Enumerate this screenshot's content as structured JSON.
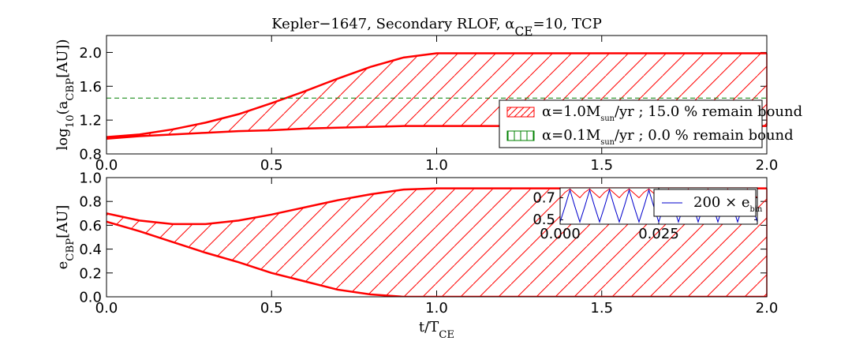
{
  "chart_data": [
    {
      "type": "band",
      "title": [
        {
          "text": "Kepler−1647, Secondary RLOF, α"
        },
        {
          "sub": "CE"
        },
        {
          "text": "=10, TCP"
        }
      ],
      "ylabel": [
        {
          "text": "log"
        },
        {
          "sub": "10"
        },
        {
          "text": "(a"
        },
        {
          "sub": "CBP"
        },
        {
          "text": "[AU])"
        }
      ],
      "x": [
        0,
        0.1,
        0.2,
        0.3,
        0.4,
        0.5,
        0.6,
        0.7,
        0.8,
        0.9,
        1.0,
        1.1,
        1.2,
        1.3,
        1.4,
        1.5,
        1.6,
        1.7,
        1.8,
        1.9,
        2.0
      ],
      "series": [
        {
          "name": [
            {
              "text": "α=1.0M"
            },
            {
              "sub": "sun"
            },
            {
              "text": "/yr ; 15.0 % remain bound"
            }
          ],
          "color": "#ff0000",
          "upper": [
            1.0,
            1.03,
            1.09,
            1.17,
            1.27,
            1.4,
            1.54,
            1.69,
            1.83,
            1.94,
            1.99,
            1.99,
            1.99,
            1.99,
            1.99,
            1.99,
            1.99,
            1.99,
            1.99,
            1.99,
            1.99
          ],
          "lower": [
            0.98,
            1.01,
            1.03,
            1.05,
            1.07,
            1.08,
            1.1,
            1.11,
            1.12,
            1.13,
            1.13,
            1.13,
            1.13,
            1.13,
            1.13,
            1.13,
            1.13,
            1.13,
            1.13,
            1.13,
            1.13
          ]
        },
        {
          "name": [
            {
              "text": "α=0.1M"
            },
            {
              "sub": "sun"
            },
            {
              "text": "/yr ; 0.0 % remain bound"
            }
          ],
          "color": "#008000"
        }
      ],
      "hline": {
        "value": 1.46,
        "color": "#008000"
      },
      "xlim": [
        0,
        2
      ],
      "ylim": [
        0.8,
        2.2
      ],
      "xticks": [
        {
          "value": 0,
          "label": "0.0"
        },
        0.5,
        {
          "value": 1,
          "label": "1.0"
        },
        1.5,
        {
          "value": 2,
          "label": "2.0"
        }
      ],
      "yticks": [
        0.8,
        1.2,
        1.6,
        {
          "value": 2,
          "label": "2.0"
        }
      ],
      "legend": "lower right"
    },
    {
      "type": "band",
      "ylabel": [
        {
          "text": "e"
        },
        {
          "sub": "CBP"
        },
        {
          "text": "[AU]"
        }
      ],
      "xlabel": [
        {
          "text": "t/T"
        },
        {
          "sub": "CE"
        }
      ],
      "x": [
        0,
        0.1,
        0.2,
        0.3,
        0.4,
        0.5,
        0.6,
        0.7,
        0.8,
        0.9,
        1.0,
        1.1,
        1.2,
        1.3,
        1.4,
        1.5,
        1.6,
        1.7,
        1.8,
        1.9,
        2.0
      ],
      "series": [
        {
          "color": "#ff0000",
          "upper": [
            0.7,
            0.64,
            0.61,
            0.61,
            0.64,
            0.69,
            0.75,
            0.81,
            0.86,
            0.9,
            0.91,
            0.91,
            0.91,
            0.91,
            0.91,
            0.91,
            0.91,
            0.91,
            0.91,
            0.91,
            0.91
          ],
          "lower": [
            0.63,
            0.55,
            0.46,
            0.37,
            0.29,
            0.2,
            0.13,
            0.06,
            0.02,
            0.0,
            0.0,
            0.0,
            0.0,
            0.0,
            0.0,
            0.0,
            0.0,
            0.0,
            0.0,
            0.0,
            0.0
          ]
        }
      ],
      "xlim": [
        0,
        2
      ],
      "ylim": [
        0,
        1
      ],
      "xticks": [
        {
          "value": 0,
          "label": "0.0"
        },
        0.5,
        {
          "value": 1,
          "label": "1.0"
        },
        1.5,
        {
          "value": 2,
          "label": "2.0"
        }
      ],
      "yticks": [
        {
          "value": 0,
          "label": "0.0"
        },
        0.2,
        0.4,
        0.6,
        0.8,
        {
          "value": 1,
          "label": "1.0"
        }
      ],
      "inset": {
        "type": "line",
        "x": [
          0,
          0.00125,
          0.0025,
          0.00375,
          0.005,
          0.00625,
          0.0075,
          0.00875,
          0.01,
          0.01125,
          0.0125,
          0.01375,
          0.015,
          0.01625,
          0.0175,
          0.01875,
          0.02,
          0.02125,
          0.0225,
          0.02375,
          0.025,
          0.02625,
          0.0275,
          0.02875,
          0.03,
          0.03125,
          0.0325,
          0.03375,
          0.035,
          0.03625,
          0.0375,
          0.03875,
          0.04,
          0.04125,
          0.0425,
          0.04375,
          0.045,
          0.04625,
          0.0475,
          0.04875,
          0.05
        ],
        "series": [
          {
            "color": "#ff0000",
            "values": [
              0.7,
              0.75,
              0.78,
              0.74,
              0.7,
              0.75,
              0.78,
              0.74,
              0.7,
              0.75,
              0.78,
              0.74,
              0.7,
              0.75,
              0.78,
              0.74,
              0.7,
              0.75,
              0.78,
              0.74,
              0.7,
              0.75,
              0.78,
              0.74,
              0.7,
              0.75,
              0.78,
              0.74,
              0.7,
              0.75,
              0.78,
              0.74,
              0.7,
              0.75,
              0.78,
              0.74,
              0.7,
              0.75,
              0.78,
              0.74,
              0.7
            ]
          },
          {
            "name": [
              {
                "text": "200 × e"
              },
              {
                "sub": "bin"
              }
            ],
            "color": "#0000cc",
            "values": [
              0.48,
              0.62,
              0.77,
              0.62,
              0.48,
              0.62,
              0.77,
              0.62,
              0.48,
              0.62,
              0.77,
              0.62,
              0.48,
              0.62,
              0.77,
              0.62,
              0.48,
              0.62,
              0.77,
              0.62,
              0.48,
              0.62,
              0.77,
              0.62,
              0.48,
              0.62,
              0.77,
              0.62,
              0.48,
              0.62,
              0.77,
              0.62,
              0.48,
              0.62,
              0.77,
              0.62,
              0.48,
              0.62,
              0.77,
              0.62,
              0.48
            ]
          }
        ],
        "xlim": [
          0,
          0.05
        ],
        "ylim": [
          0.46,
          0.79
        ],
        "xticks": [
          {
            "value": 0,
            "label": "0.000"
          },
          0.025
        ],
        "yticks": [
          0.5,
          0.7
        ]
      }
    }
  ]
}
